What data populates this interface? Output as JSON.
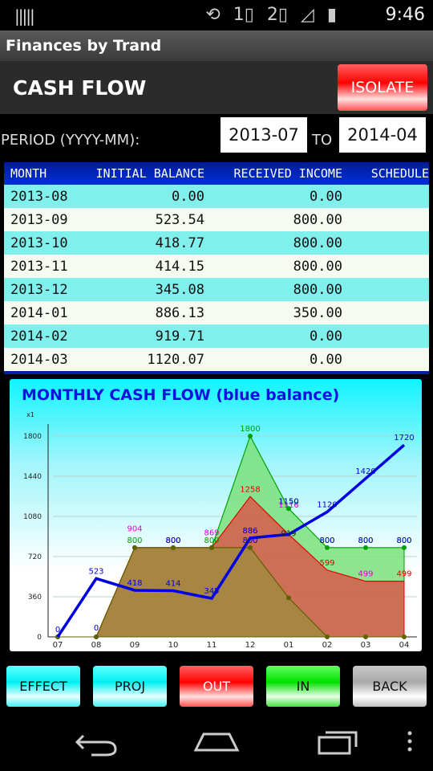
{
  "status_bar": {
    "sim1": "1",
    "sim2": "2",
    "time": "9:46",
    "icons": [
      "barcode-icon",
      "rotate-icon",
      "sim1-icon",
      "sim2-icon",
      "signal-icon",
      "battery-icon"
    ]
  },
  "app_bar": {
    "title": "Finances by Trand"
  },
  "header": {
    "title": "CASH FLOW",
    "isolate_label": "ISOLATE"
  },
  "period": {
    "label": "PERIOD (YYYY-MM):",
    "from": "2013-07",
    "to_label": "TO",
    "to": "2014-04"
  },
  "table": {
    "columns": [
      "MONTH",
      "INITIAL BALANCE",
      "RECEIVED INCOME",
      "SCHEDULE"
    ],
    "rows": [
      [
        "2013-08",
        "0.00",
        "0.00",
        ""
      ],
      [
        "2013-09",
        "523.54",
        "800.00",
        ""
      ],
      [
        "2013-10",
        "418.77",
        "800.00",
        ""
      ],
      [
        "2013-11",
        "414.15",
        "800.00",
        ""
      ],
      [
        "2013-12",
        "345.08",
        "800.00",
        ""
      ],
      [
        "2014-01",
        "886.13",
        "350.00",
        ""
      ],
      [
        "2014-02",
        "919.71",
        "0.00",
        ""
      ],
      [
        "2014-03",
        "1120.07",
        "0.00",
        ""
      ]
    ]
  },
  "chart_data": {
    "type": "line",
    "title": "MONTHLY CASH FLOW (blue balance)",
    "y_multiplier": "x1",
    "categories": [
      "07",
      "08",
      "09",
      "10",
      "11",
      "12",
      "01",
      "02",
      "03",
      "04"
    ],
    "y_ticks": [
      0,
      360,
      720,
      1080,
      1440,
      1800
    ],
    "ylim": [
      0,
      1800
    ],
    "series": [
      {
        "role": "income",
        "color": "#00a000",
        "fill": "#7be07b",
        "values": [
          0,
          0,
          800,
          800,
          800,
          1800,
          1150,
          800,
          800,
          800
        ],
        "labels": [
          "",
          "",
          "800",
          "800",
          "800",
          "1800",
          "1150",
          "800",
          "800",
          "800"
        ]
      },
      {
        "role": "projection",
        "color": "#e000e0",
        "fill": "",
        "values": [
          0,
          0,
          904,
          800,
          869,
          886,
          1116,
          800,
          499,
          499
        ],
        "labels": [
          "",
          "",
          "904",
          "800",
          "869",
          "886",
          "1116",
          "",
          "499",
          ""
        ]
      },
      {
        "role": "expense",
        "color": "#e00000",
        "fill": "#d85a4a",
        "values": [
          0,
          0,
          800,
          800,
          800,
          1258,
          919,
          599,
          499,
          499
        ],
        "labels": [
          "",
          "",
          "",
          "",
          "",
          "1258",
          "",
          "599",
          "",
          "499"
        ]
      },
      {
        "role": "effect",
        "color": "#606000",
        "fill": "#a08a40",
        "values": [
          0,
          0,
          800,
          800,
          800,
          800,
          350,
          0,
          0,
          0
        ],
        "labels": [
          "",
          "",
          "",
          "",
          "",
          "",
          "919",
          "",
          "",
          ""
        ]
      },
      {
        "role": "balance",
        "color": "#0000e0",
        "fill": "",
        "values": [
          0,
          523,
          418,
          414,
          345,
          886,
          919,
          1120,
          1420,
          1720
        ],
        "labels": [
          "0",
          "523",
          "418",
          "414",
          "345",
          "886",
          "",
          "1120",
          "1420",
          "1720"
        ]
      }
    ],
    "extra_labels": [
      {
        "category": "01",
        "value": "1150"
      },
      {
        "category": "12",
        "value": "800"
      },
      {
        "category": "10",
        "value": "800"
      },
      {
        "category": "02",
        "value": "800"
      },
      {
        "category": "03",
        "value": "800"
      },
      {
        "category": "04",
        "value": "800"
      },
      {
        "category": "08",
        "value": "0"
      }
    ],
    "grid": true
  },
  "buttons": {
    "effect": "EFFECT",
    "proj": "PROJ",
    "out": "OUT",
    "in": "IN",
    "back": "BACK"
  },
  "nav": {
    "icons": [
      "back-nav-icon",
      "home-nav-icon",
      "recents-nav-icon",
      "overflow-menu-icon"
    ]
  }
}
